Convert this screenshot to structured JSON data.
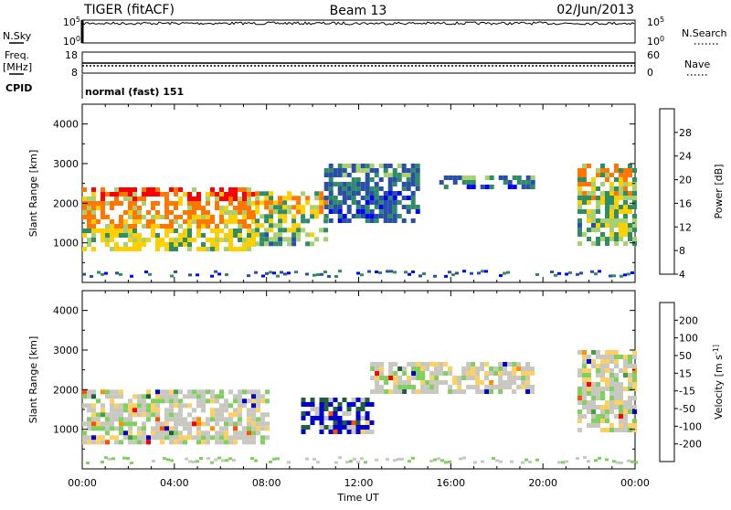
{
  "header": {
    "radar": "TIGER (fitACF)",
    "beam": "Beam 13",
    "date": "02/Jun/2013"
  },
  "noise_panel": {
    "left_label": "N.Sky",
    "right_label": "N.Search",
    "left_ticks": [
      "10^5",
      "10^0"
    ],
    "right_ticks": [
      "10^5",
      "10^0"
    ]
  },
  "freq_panel": {
    "left_label_1": "Freq.",
    "left_label_2": "[MHz]",
    "right_label": "Nave",
    "left_ticks": [
      "18",
      "8"
    ],
    "right_ticks": [
      "60",
      "0"
    ]
  },
  "cpid": {
    "label": "CPID",
    "value": "normal (fast) 151"
  },
  "chart_data": [
    {
      "type": "heatmap",
      "title": "",
      "ylabel": "Slant Range [km]",
      "xlabel": "",
      "x_range_hours": [
        0,
        24
      ],
      "ylim": [
        0,
        4500
      ],
      "yticks": [
        "1000",
        "2000",
        "3000",
        "4000"
      ],
      "colorbar": {
        "label": "Power [dB]",
        "ticks": [
          "4",
          "8",
          "12",
          "16",
          "20",
          "24",
          "28"
        ],
        "colors": [
          "#0000ff",
          "#2a4fa8",
          "#2e8c66",
          "#a8d070",
          "#ffd000",
          "#ff7700",
          "#ff0000"
        ]
      },
      "regions": [
        {
          "x": [
            0,
            7.5
          ],
          "y": [
            800,
            2400
          ],
          "level": "high"
        },
        {
          "x": [
            7.5,
            10.5
          ],
          "y": [
            1000,
            2300
          ],
          "level": "medium"
        },
        {
          "x": [
            10.5,
            14.5
          ],
          "y": [
            1500,
            3000
          ],
          "level": "low"
        },
        {
          "x": [
            15.5,
            19.5
          ],
          "y": [
            2400,
            2700
          ],
          "level": "low"
        },
        {
          "x": [
            21.5,
            24
          ],
          "y": [
            1000,
            3000
          ],
          "level": "medium"
        }
      ]
    },
    {
      "type": "heatmap",
      "title": "",
      "ylabel": "Slant Range [km]",
      "xlabel": "Time UT",
      "x_range_hours": [
        0,
        24
      ],
      "ylim": [
        0,
        4500
      ],
      "yticks": [
        "1000",
        "2000",
        "3000",
        "4000"
      ],
      "xticks": [
        "00:00",
        "04:00",
        "08:00",
        "12:00",
        "16:00",
        "20:00",
        "00:00"
      ],
      "colorbar": {
        "label": "Velocity [m s^-1]",
        "ticks": [
          "200",
          "100",
          "50",
          "15",
          "-15",
          "-50",
          "-100",
          "-200"
        ],
        "colors": [
          "#0000cc",
          "#206040",
          "#40a040",
          "#80d060",
          "#c8c8c0",
          "#ffd060",
          "#ff9000",
          "#ff5000",
          "#ff0000"
        ]
      },
      "regions": [
        {
          "x": [
            0,
            8
          ],
          "y": [
            700,
            2000
          ],
          "velocity": "near-zero"
        },
        {
          "x": [
            9.5,
            12.5
          ],
          "y": [
            900,
            1800
          ],
          "velocity": "positive"
        },
        {
          "x": [
            12.5,
            19.5
          ],
          "y": [
            2000,
            2700
          ],
          "velocity": "near-zero"
        },
        {
          "x": [
            21.5,
            24
          ],
          "y": [
            1000,
            3000
          ],
          "velocity": "near-zero"
        }
      ]
    }
  ]
}
